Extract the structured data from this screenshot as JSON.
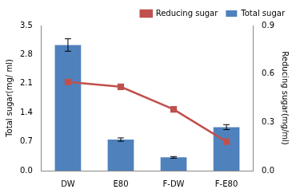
{
  "chart_data": {
    "type": "bar",
    "categories": [
      "DW",
      "E80",
      "F-DW",
      "F-E80"
    ],
    "series": [
      {
        "name": "Total sugar",
        "type": "bar",
        "color": "#4f81bd",
        "axis": "y",
        "values": [
          3.03,
          0.75,
          0.32,
          1.05
        ],
        "errors": [
          0.15,
          0.04,
          0.02,
          0.06
        ]
      },
      {
        "name": "Reducing sugar",
        "type": "line",
        "color": "#c0504d",
        "axis": "y2",
        "marker": "square",
        "line_style": "solid",
        "values": [
          0.55,
          0.52,
          0.38,
          0.18
        ]
      }
    ],
    "y_label": "Total sugar(mg/ ml)",
    "y2_label": "Reducing sugar(mg/ml)",
    "ylim": [
      0,
      3.5
    ],
    "yticks": [
      {
        "value": 0,
        "label": "0.0"
      },
      0.7,
      1.4,
      2.1,
      2.8,
      3.5
    ],
    "y2lim": [
      0,
      0.9
    ],
    "y2ticks": [
      {
        "value": 0,
        "label": "0.0"
      },
      0.3,
      0.6,
      0.9
    ],
    "grid": false,
    "legend": "upper right"
  }
}
